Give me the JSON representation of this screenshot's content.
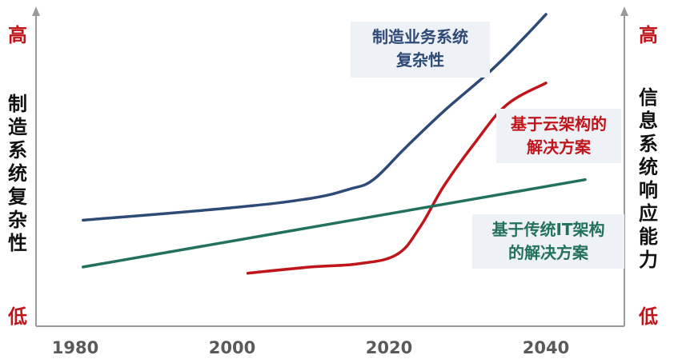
{
  "chart_data": {
    "type": "line",
    "x_ticks": [
      "1980",
      "2000",
      "2020",
      "2040"
    ],
    "xlim": [
      1975,
      2050
    ],
    "ylim": [
      0,
      100
    ],
    "left_axis": {
      "label": "制造系统复杂性",
      "top_label": "高",
      "bottom_label": "低"
    },
    "right_axis": {
      "label": "信息系统响应能力",
      "top_label": "高",
      "bottom_label": "低"
    },
    "extreme_color": "#c0151b",
    "series": [
      {
        "name": "制造业务系统复杂性",
        "color": "#2e4a76",
        "points": [
          [
            1981,
            34
          ],
          [
            2000,
            38
          ],
          [
            2010,
            41
          ],
          [
            2015,
            44
          ],
          [
            2018,
            47
          ],
          [
            2022,
            57
          ],
          [
            2027,
            69
          ],
          [
            2033,
            82
          ],
          [
            2037,
            92
          ],
          [
            2040,
            100
          ]
        ]
      },
      {
        "name": "基于云架构的解决方案",
        "color": "#c0151b",
        "points": [
          [
            2002,
            17
          ],
          [
            2010,
            19
          ],
          [
            2016,
            20
          ],
          [
            2021,
            23
          ],
          [
            2024,
            32
          ],
          [
            2027,
            45
          ],
          [
            2031,
            59
          ],
          [
            2035,
            71
          ],
          [
            2040,
            78
          ]
        ]
      },
      {
        "name": "基于传统IT架构的解决方案",
        "color": "#22715e",
        "points": [
          [
            1981,
            19
          ],
          [
            2045,
            47
          ]
        ]
      }
    ],
    "annotations": [
      {
        "lines": [
          "制造业务系统",
          "复杂性"
        ],
        "color": "#2e4a76"
      },
      {
        "lines": [
          "基于云架构的",
          "解决方案"
        ],
        "color": "#c0151b"
      },
      {
        "lines": [
          "基于传统IT架构",
          "的解决方案"
        ],
        "color": "#22715e"
      }
    ]
  }
}
